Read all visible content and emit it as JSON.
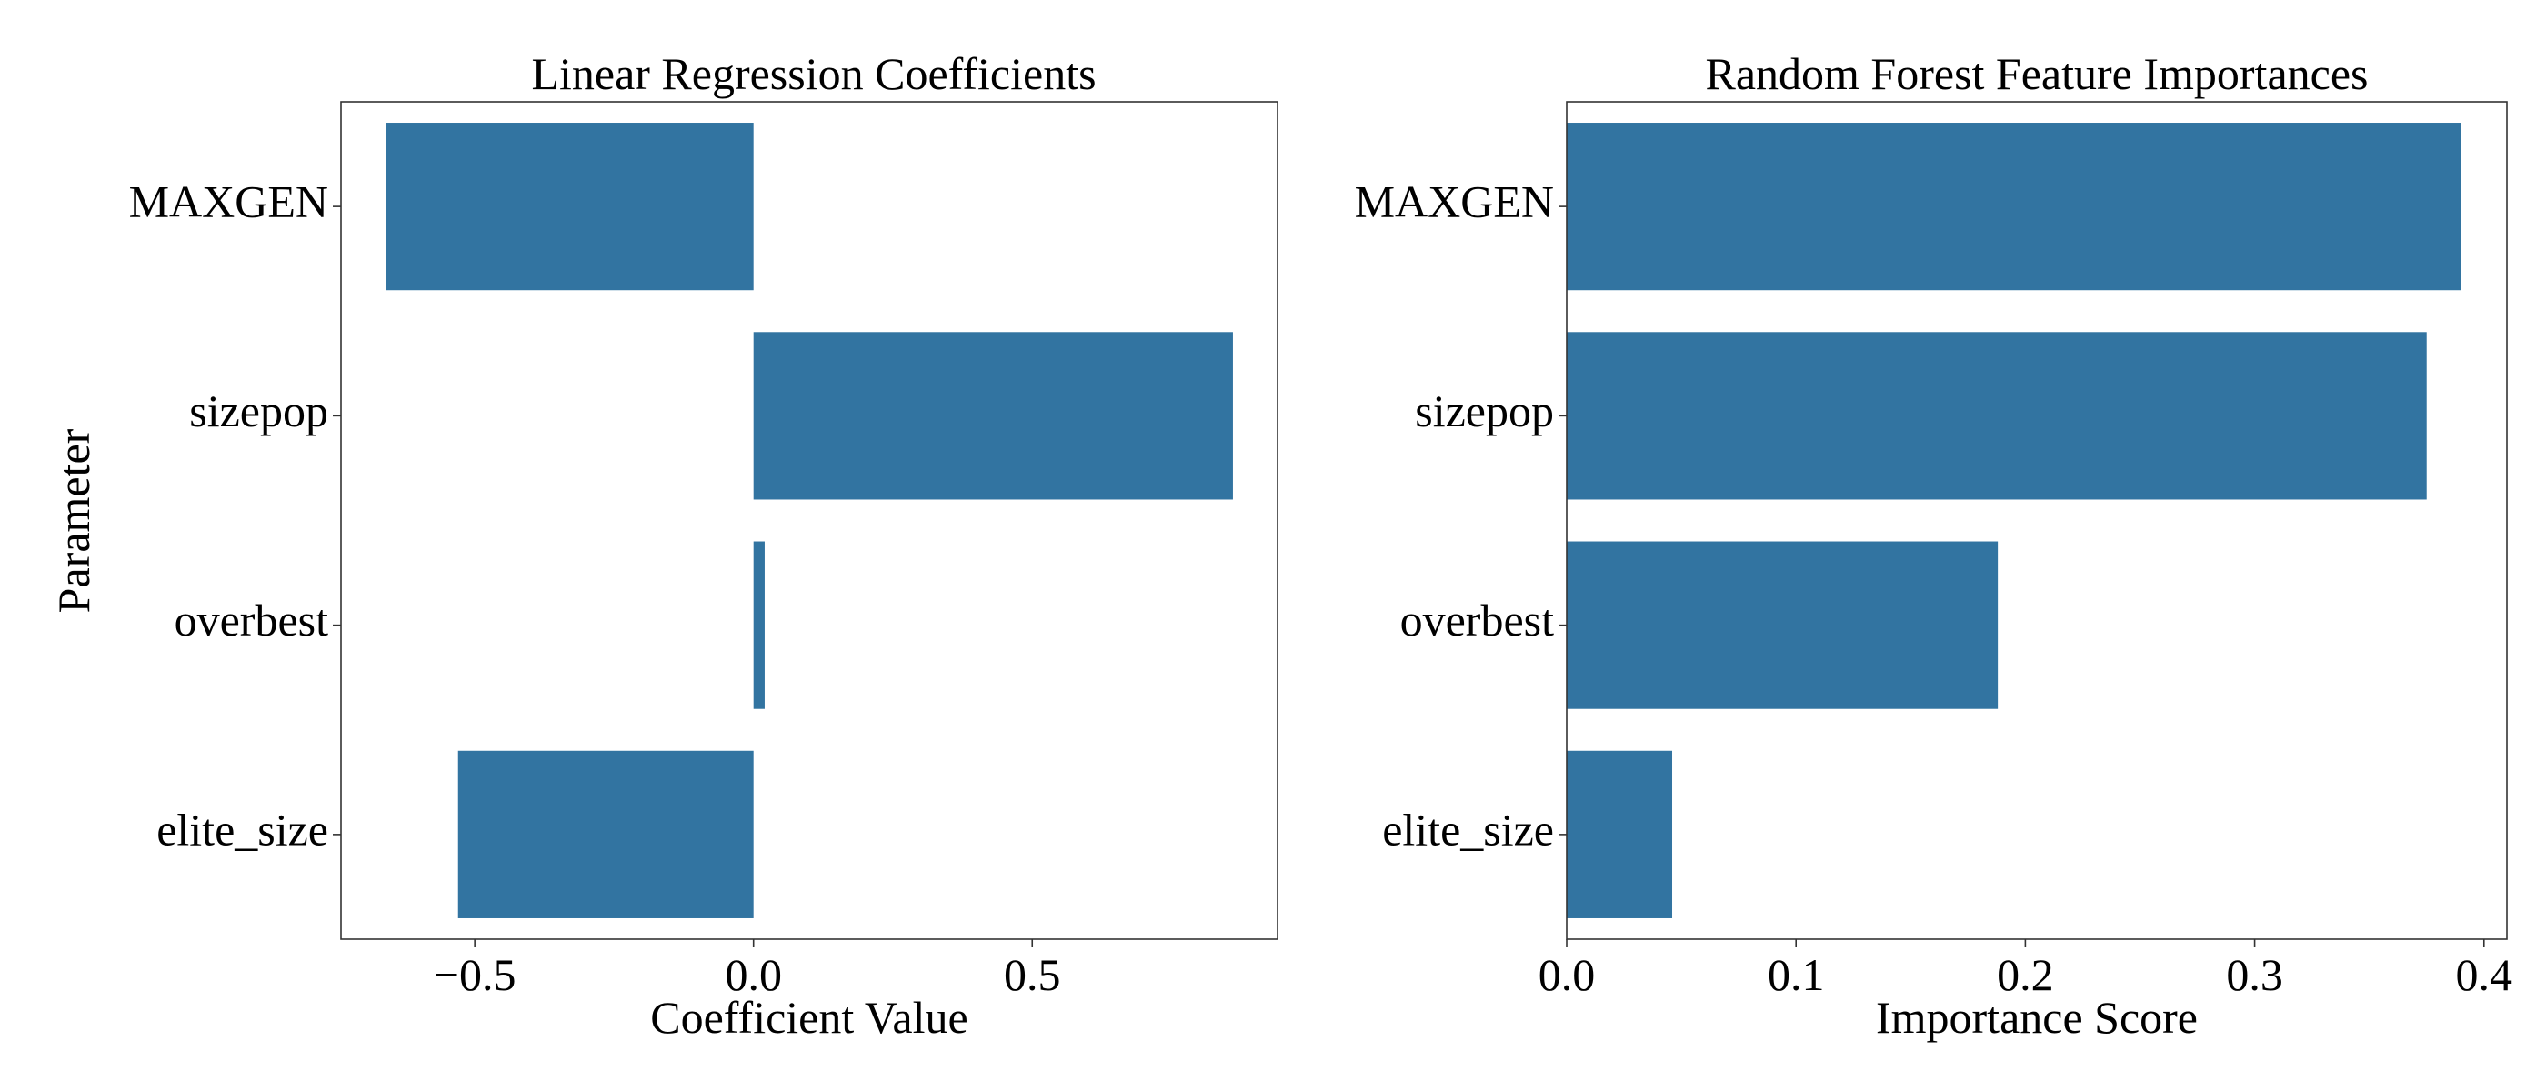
{
  "bar_color": "#3274a1",
  "chart_data": [
    {
      "type": "bar",
      "orientation": "horizontal",
      "title": "Linear Regression Coefficients",
      "xlabel": "Coefficient Value",
      "ylabel": "Parameter",
      "categories": [
        "MAXGEN",
        "sizepop",
        "overbest",
        "elite_size"
      ],
      "values": [
        -0.66,
        0.86,
        0.02,
        -0.53
      ],
      "xlim": [
        -0.74,
        0.94
      ],
      "xticks": [
        -0.5,
        0.0,
        0.5
      ],
      "xtick_labels": [
        "−0.5",
        "0.0",
        "0.5"
      ],
      "grid": false
    },
    {
      "type": "bar",
      "orientation": "horizontal",
      "title": "Random Forest Feature Importances",
      "xlabel": "Importance Score",
      "ylabel": "",
      "categories": [
        "MAXGEN",
        "sizepop",
        "overbest",
        "elite_size"
      ],
      "values": [
        0.39,
        0.375,
        0.188,
        0.046
      ],
      "xlim": [
        0.0,
        0.41
      ],
      "xticks": [
        0.0,
        0.1,
        0.2,
        0.3,
        0.4
      ],
      "xtick_labels": [
        "0.0",
        "0.1",
        "0.2",
        "0.3",
        "0.4"
      ],
      "grid": false
    }
  ]
}
